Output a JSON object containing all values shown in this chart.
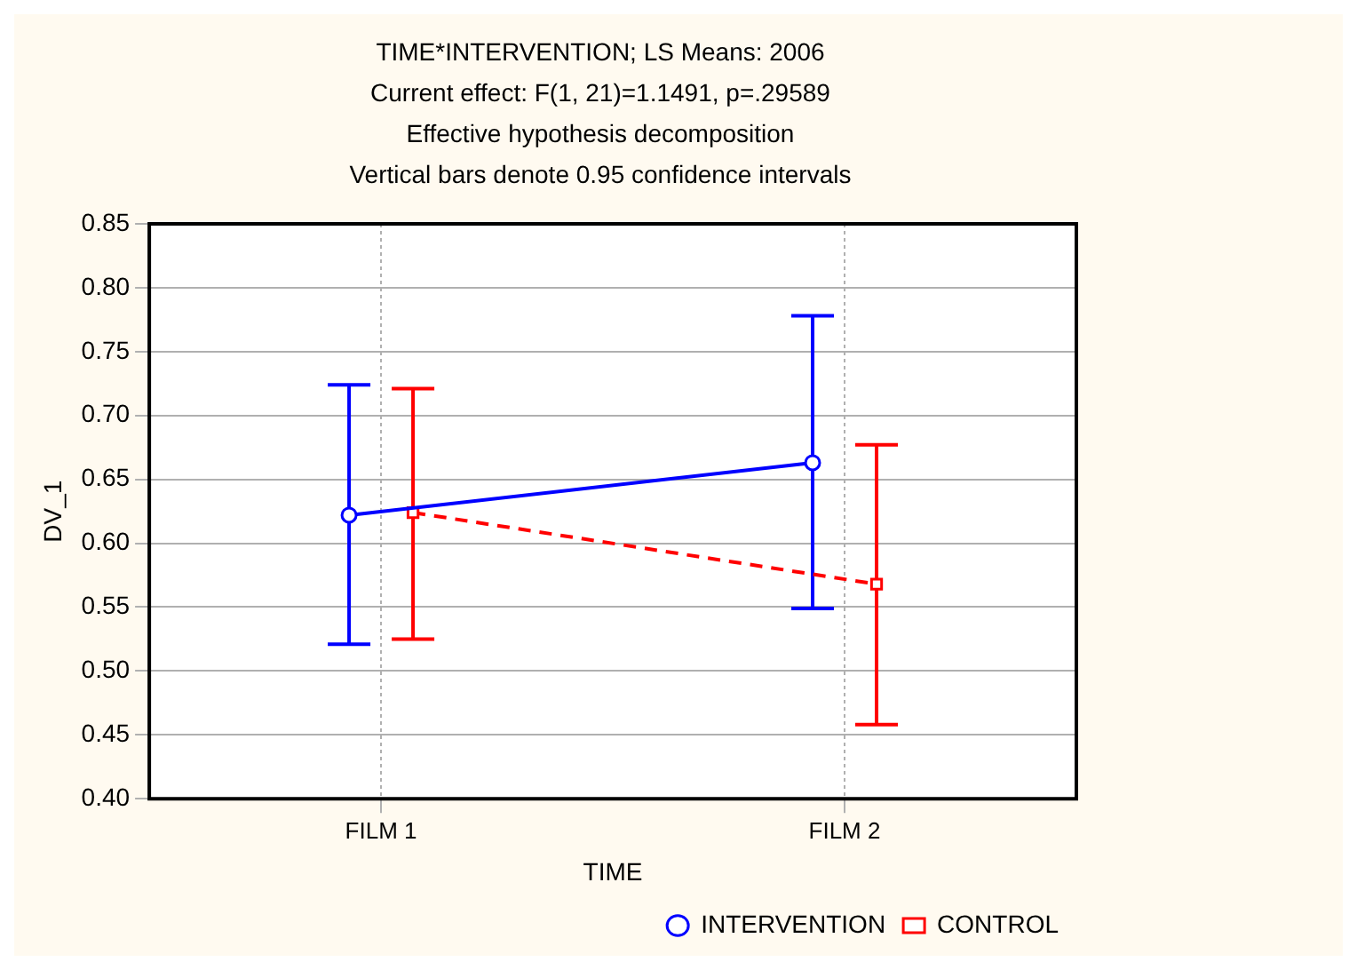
{
  "chart_data": {
    "type": "line",
    "title": "TIME*INTERVENTION; LS Means: 2006",
    "subtitle": "Current effect: F(1, 21)=1.1491, p=.29589",
    "annotations": [
      "Effective hypothesis decomposition",
      "Vertical bars denote 0.95 confidence intervals"
    ],
    "xlabel": "TIME",
    "ylabel": "DV_1",
    "categories": [
      "FILM 1",
      "FILM 2"
    ],
    "series": [
      {
        "name": "INTERVENTION",
        "color": "#0000ff",
        "values": [
          0.622,
          0.663
        ],
        "errors": [
          [
            0.521,
            0.724
          ],
          [
            0.549,
            0.778
          ]
        ],
        "marker": "circle",
        "line_style": "solid"
      },
      {
        "name": "CONTROL",
        "color": "#ff0000",
        "values": [
          0.624,
          0.568
        ],
        "errors": [
          [
            0.525,
            0.721
          ],
          [
            0.458,
            0.677
          ]
        ],
        "marker": "square",
        "line_style": "dashed"
      }
    ],
    "ylim": [
      0.4,
      0.85
    ],
    "yticks": [
      {
        "value": 0.4,
        "label": "0.40"
      },
      {
        "value": 0.45,
        "label": "0.45"
      },
      {
        "value": 0.5,
        "label": "0.50"
      },
      {
        "value": 0.55,
        "label": "0.55"
      },
      {
        "value": 0.6,
        "label": "0.60"
      },
      {
        "value": 0.65,
        "label": "0.65"
      },
      {
        "value": 0.7,
        "label": "0.70"
      },
      {
        "value": 0.75,
        "label": "0.75"
      },
      {
        "value": 0.8,
        "label": "0.80"
      },
      {
        "value": 0.85,
        "label": "0.85"
      }
    ],
    "grid": true,
    "legend": "bottom right"
  }
}
